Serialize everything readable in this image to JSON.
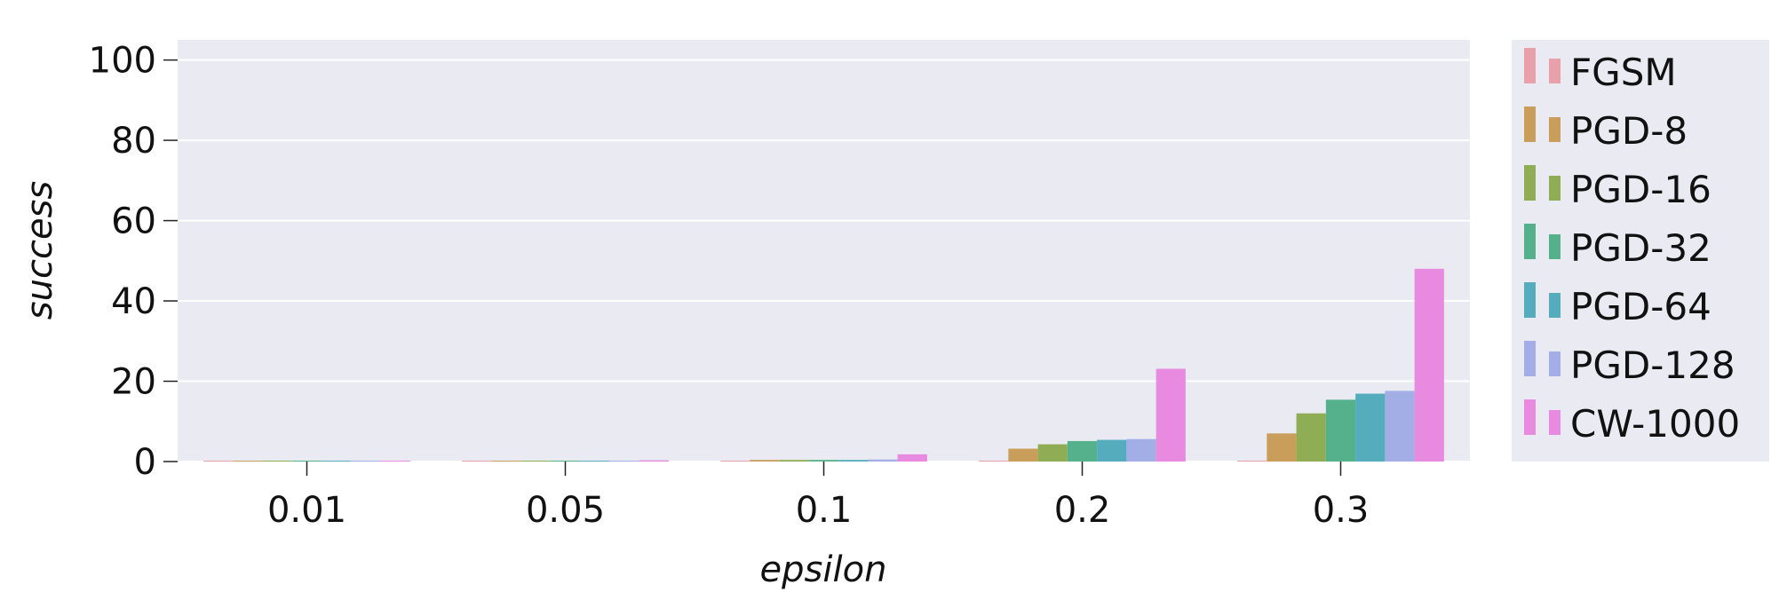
{
  "chart_data": {
    "type": "bar",
    "xlabel": "epsilon",
    "ylabel": "success",
    "categories": [
      "0.01",
      "0.05",
      "0.1",
      "0.2",
      "0.3"
    ],
    "ylim": [
      0,
      105
    ],
    "yticks": [
      0,
      20,
      40,
      60,
      80,
      100
    ],
    "grid": true,
    "legend_position": "right",
    "series": [
      {
        "name": "FGSM",
        "color": "#e8a0aa",
        "values": [
          0.2,
          0.2,
          0.2,
          0.2,
          0.2
        ]
      },
      {
        "name": "PGD-8",
        "color": "#c99d5a",
        "values": [
          0.2,
          0.2,
          0.4,
          3.2,
          7.0
        ]
      },
      {
        "name": "PGD-16",
        "color": "#8fad55",
        "values": [
          0.2,
          0.2,
          0.4,
          4.3,
          12.0
        ]
      },
      {
        "name": "PGD-32",
        "color": "#55b08c",
        "values": [
          0.2,
          0.2,
          0.4,
          5.1,
          15.4
        ]
      },
      {
        "name": "PGD-64",
        "color": "#55acbd",
        "values": [
          0.2,
          0.2,
          0.4,
          5.4,
          16.9
        ]
      },
      {
        "name": "PGD-128",
        "color": "#a3aee7",
        "values": [
          0.2,
          0.2,
          0.5,
          5.6,
          17.6
        ]
      },
      {
        "name": "CW-1000",
        "color": "#e88adf",
        "values": [
          0.2,
          0.3,
          1.8,
          23.1,
          48.0
        ]
      }
    ]
  }
}
